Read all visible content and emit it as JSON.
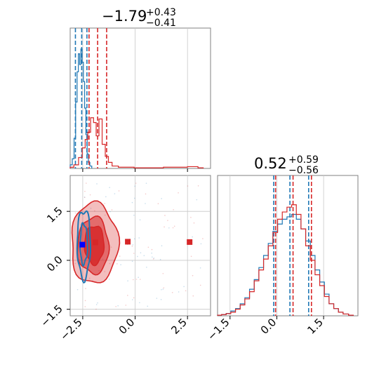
{
  "chart_data": {
    "type": "corner",
    "colors": {
      "blue": "#1f77b4",
      "red": "#d62728",
      "grid": "#c8c8c8"
    },
    "panels": [
      {
        "id": "hist-param-1",
        "type": "histogram",
        "title": {
          "main": "−1.79",
          "sup": "+0.43",
          "sub": "−0.41"
        },
        "xlim": [
          -3.1,
          3.6
        ],
        "grid": true,
        "series": [
          {
            "name": "",
            "color": "#1f77b4",
            "bins": [
              [
                -3.05,
                0.03
              ],
              [
                -2.95,
                0.08
              ],
              [
                -2.88,
                0.25
              ],
              [
                -2.8,
                0.55
              ],
              [
                -2.74,
                0.8
              ],
              [
                -2.68,
                0.95
              ],
              [
                -2.62,
                0.86
              ],
              [
                -2.56,
                0.99
              ],
              [
                -2.5,
                0.88
              ],
              [
                -2.44,
                0.72
              ],
              [
                -2.38,
                0.5
              ],
              [
                -2.32,
                0.28
              ],
              [
                -2.26,
                0.12
              ],
              [
                -2.2,
                0.05
              ],
              [
                -2.12,
                0.02
              ]
            ],
            "quantile_lines": [
              -2.85,
              -2.55,
              -2.3
            ]
          },
          {
            "name": "",
            "color": "#d62728",
            "bins": [
              [
                -3.05,
                0.01
              ],
              [
                -2.8,
                0.03
              ],
              [
                -2.6,
                0.09
              ],
              [
                -2.45,
                0.17
              ],
              [
                -2.32,
                0.24
              ],
              [
                -2.2,
                0.3
              ],
              [
                -2.05,
                0.42
              ],
              [
                -1.92,
                0.38
              ],
              [
                -1.8,
                0.27
              ],
              [
                -1.65,
                0.41
              ],
              [
                -1.5,
                0.2
              ],
              [
                -1.35,
                0.1
              ],
              [
                -1.2,
                0.05
              ],
              [
                -1.0,
                0.02
              ],
              [
                -0.6,
                0.01
              ],
              [
                0.5,
                0.005
              ],
              [
                2.2,
                0.01
              ],
              [
                2.8,
                0.015
              ],
              [
                3.2,
                0.005
              ]
            ],
            "quantile_lines": [
              -2.2,
              -1.79,
              -1.36
            ]
          }
        ]
      },
      {
        "id": "contour-param-1-vs-2",
        "type": "contour",
        "xlim": [
          -3.1,
          3.6
        ],
        "ylim": [
          -1.7,
          2.6
        ],
        "grid": true,
        "series": [
          {
            "name": "",
            "color": "#d62728",
            "levels": [
              {
                "cx": -1.95,
                "cy": 0.52,
                "rx": 1.8,
                "ry": 2.0
              },
              {
                "cx": -2.0,
                "cy": 0.45,
                "rx": 1.2,
                "ry": 1.4
              },
              {
                "cx": -1.95,
                "cy": 0.48,
                "rx": 0.75,
                "ry": 0.95
              }
            ],
            "markers": [
              [
                -1.9,
                0.55
              ],
              [
                -0.35,
                0.57
              ],
              [
                2.6,
                0.56
              ]
            ]
          },
          {
            "name": "",
            "color": "#1f77b4",
            "levels": [
              {
                "cx": -2.45,
                "cy": 0.5,
                "rx": 0.45,
                "ry": 1.7
              },
              {
                "cx": -2.45,
                "cy": 0.5,
                "rx": 0.25,
                "ry": 1.0
              }
            ],
            "markers": [
              [
                -2.52,
                0.48
              ]
            ]
          }
        ],
        "xticks": [
          -2.5,
          0.0,
          2.5
        ],
        "xtick_labels": [
          "−2.5",
          "0.0",
          "2.5"
        ],
        "yticks": [
          -1.5,
          0.0,
          1.5
        ],
        "ytick_labels": [
          "−1.5",
          "0.0",
          "1.5"
        ]
      },
      {
        "id": "hist-param-2",
        "type": "histogram",
        "title": {
          "main": "0.52",
          "sup": "+0.59",
          "sub": "−0.56"
        },
        "xlim": [
          -1.9,
          2.6
        ],
        "grid": true,
        "series": [
          {
            "name": "",
            "color": "#1f77b4",
            "bins": [
              [
                -1.85,
                0.005
              ],
              [
                -1.7,
                0.01
              ],
              [
                -1.55,
                0.02
              ],
              [
                -1.4,
                0.04
              ],
              [
                -1.25,
                0.06
              ],
              [
                -1.1,
                0.1
              ],
              [
                -0.95,
                0.15
              ],
              [
                -0.8,
                0.22
              ],
              [
                -0.65,
                0.3
              ],
              [
                -0.5,
                0.4
              ],
              [
                -0.35,
                0.5
              ],
              [
                -0.2,
                0.6
              ],
              [
                -0.05,
                0.7
              ],
              [
                0.1,
                0.76
              ],
              [
                0.25,
                0.8
              ],
              [
                0.4,
                0.82
              ],
              [
                0.55,
                0.84
              ],
              [
                0.7,
                0.8
              ],
              [
                0.85,
                0.72
              ],
              [
                1.0,
                0.62
              ],
              [
                1.15,
                0.5
              ],
              [
                1.3,
                0.38
              ],
              [
                1.45,
                0.28
              ],
              [
                1.6,
                0.18
              ],
              [
                1.75,
                0.1
              ],
              [
                1.9,
                0.06
              ],
              [
                2.05,
                0.03
              ],
              [
                2.2,
                0.015
              ],
              [
                2.4,
                0.005
              ]
            ],
            "quantile_lines": [
              -0.1,
              0.42,
              1.02
            ]
          },
          {
            "name": "",
            "color": "#d62728",
            "bins": [
              [
                -1.85,
                0.005
              ],
              [
                -1.7,
                0.01
              ],
              [
                -1.55,
                0.018
              ],
              [
                -1.4,
                0.03
              ],
              [
                -1.25,
                0.055
              ],
              [
                -1.1,
                0.09
              ],
              [
                -0.95,
                0.14
              ],
              [
                -0.8,
                0.2
              ],
              [
                -0.65,
                0.29
              ],
              [
                -0.5,
                0.38
              ],
              [
                -0.35,
                0.47
              ],
              [
                -0.2,
                0.58
              ],
              [
                -0.05,
                0.69
              ],
              [
                0.1,
                0.8
              ],
              [
                0.25,
                0.86
              ],
              [
                0.4,
                0.9
              ],
              [
                0.55,
                0.92
              ],
              [
                0.7,
                0.84
              ],
              [
                0.85,
                0.72
              ],
              [
                1.0,
                0.58
              ],
              [
                1.15,
                0.46
              ],
              [
                1.3,
                0.34
              ],
              [
                1.45,
                0.25
              ],
              [
                1.6,
                0.16
              ],
              [
                1.75,
                0.1
              ],
              [
                1.9,
                0.06
              ],
              [
                2.05,
                0.03
              ],
              [
                2.2,
                0.015
              ],
              [
                2.4,
                0.005
              ]
            ],
            "quantile_lines": [
              -0.04,
              0.52,
              1.11
            ]
          }
        ],
        "xticks": [
          -1.5,
          0.0,
          1.5
        ],
        "xtick_labels": [
          "−1.5",
          "0.0",
          "1.5"
        ]
      }
    ]
  }
}
